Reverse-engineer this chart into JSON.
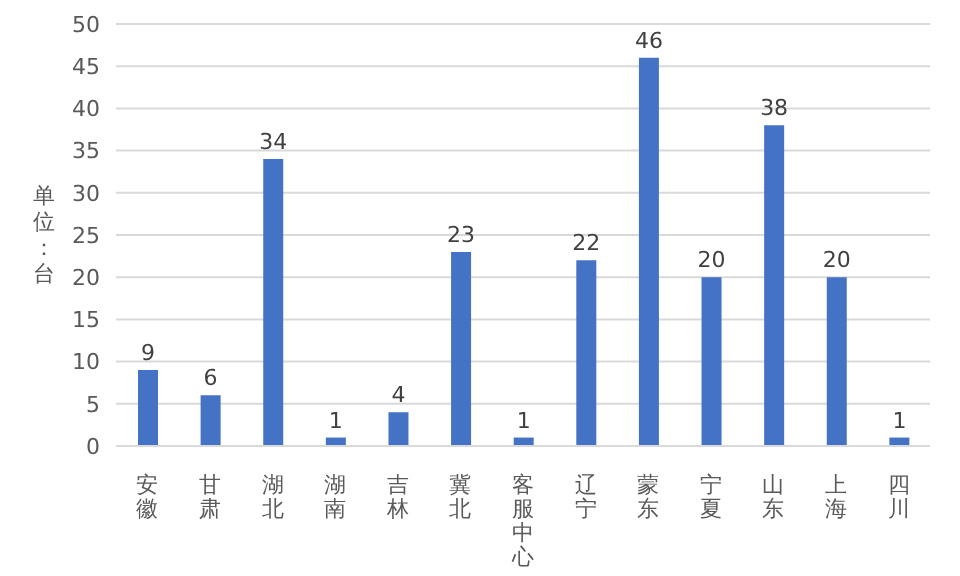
{
  "chart_data": {
    "type": "bar",
    "ylabel": "单位：台",
    "categories": [
      "安徽",
      "甘肃",
      "湖北",
      "湖南",
      "吉林",
      "冀北",
      "客服中心",
      "辽宁",
      "蒙东",
      "宁夏",
      "山东",
      "上海",
      "四川"
    ],
    "values": [
      9,
      6,
      34,
      1,
      4,
      23,
      1,
      22,
      46,
      20,
      38,
      20,
      1
    ],
    "color": "#4472c4",
    "ylim": [
      0,
      50
    ],
    "yticks": [
      0,
      5,
      10,
      15,
      20,
      25,
      30,
      35,
      40,
      45,
      50
    ],
    "grid": "y",
    "data_labels": true
  }
}
